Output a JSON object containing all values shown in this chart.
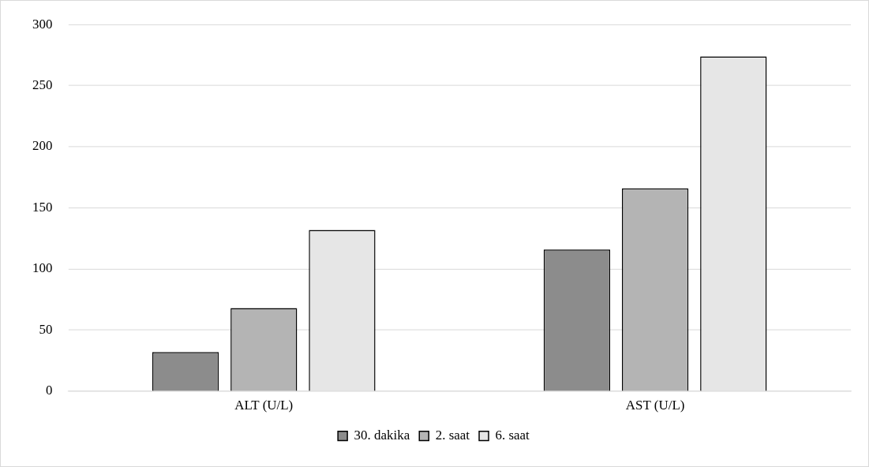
{
  "chart_data": {
    "type": "bar",
    "categories": [
      "ALT (U/L)",
      "AST (U/L)"
    ],
    "series": [
      {
        "name": "30. dakika",
        "color": "#8c8c8c",
        "values": [
          32,
          116
        ]
      },
      {
        "name": "2. saat",
        "color": "#b4b4b4",
        "values": [
          68,
          166
        ]
      },
      {
        "name": "6. saat",
        "color": "#e6e6e6",
        "values": [
          132,
          274
        ]
      }
    ],
    "ylim": [
      0,
      300
    ],
    "yticks": [
      0,
      50,
      100,
      150,
      200,
      250,
      300
    ],
    "grid": "y",
    "legend": "bottom"
  }
}
